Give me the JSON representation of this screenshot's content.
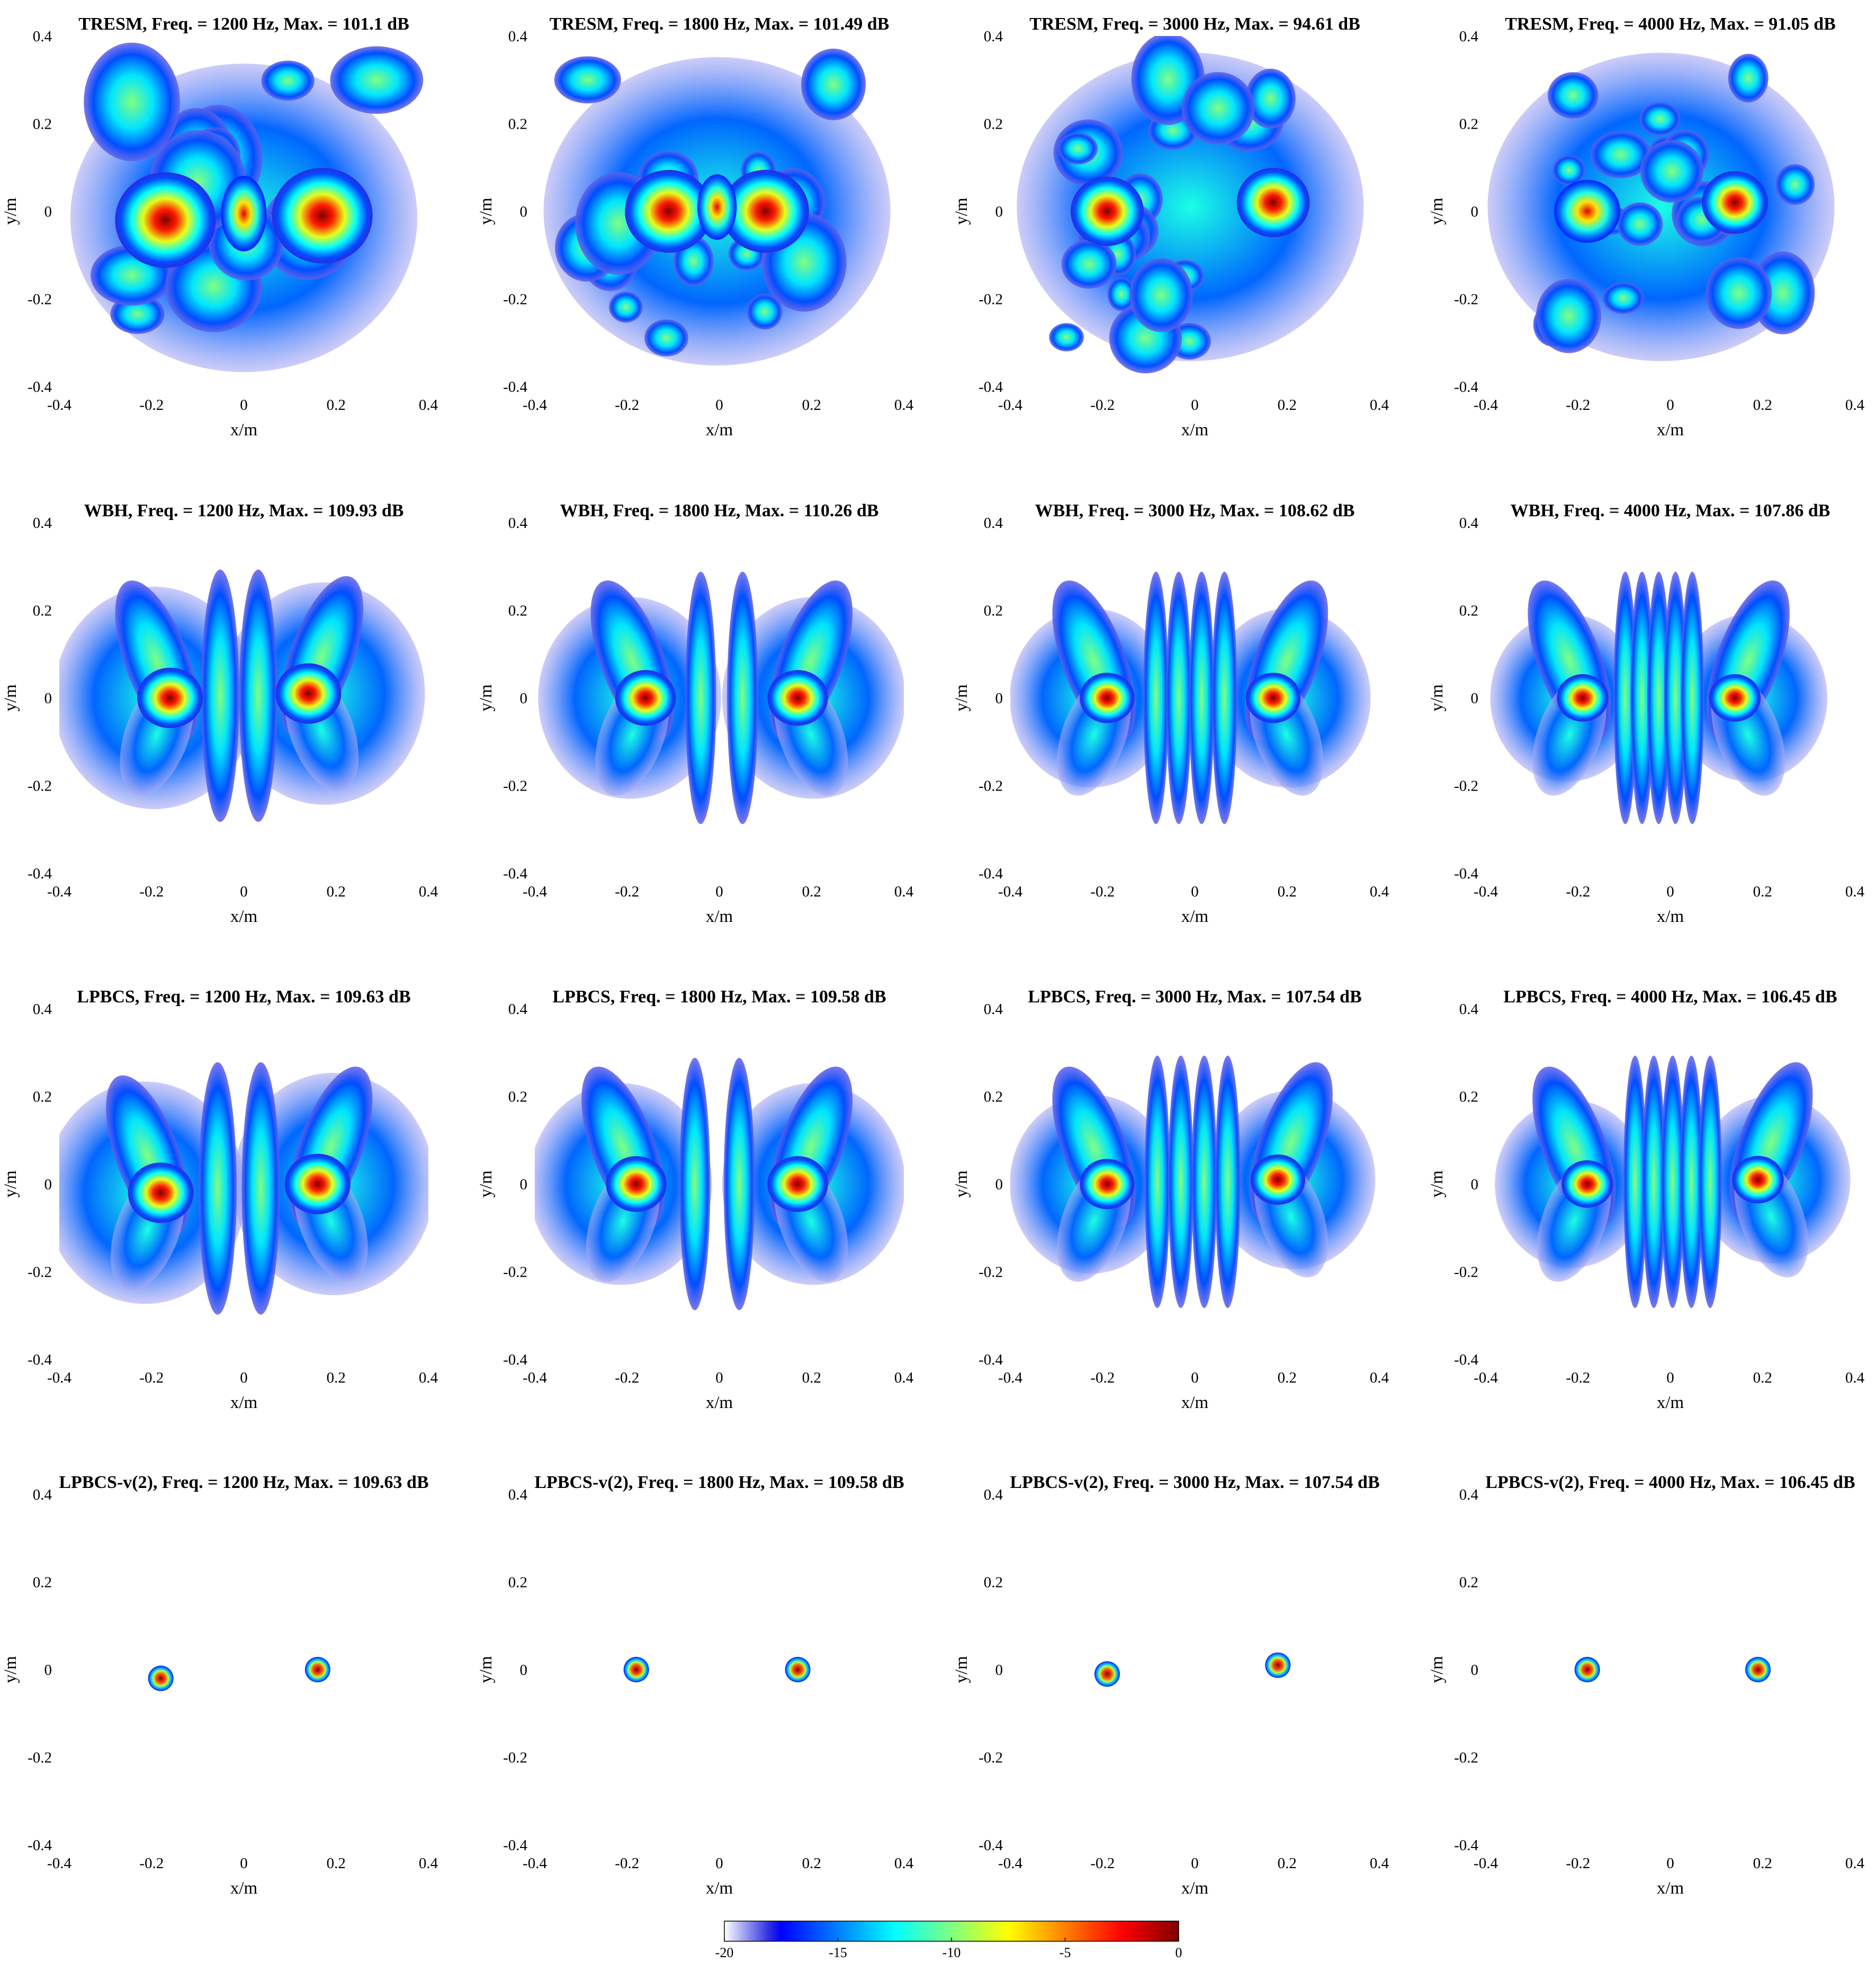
{
  "chart_data": {
    "type": "heatmap",
    "x_axis": {
      "label": "x/m",
      "range": [
        -0.4,
        0.4
      ],
      "ticks": [
        "-0.4",
        "-0.2",
        "0",
        "0.2",
        "0.4"
      ]
    },
    "y_axis": {
      "label": "y/m",
      "range": [
        -0.4,
        0.4
      ],
      "ticks": [
        "0.4",
        "0.2",
        "0",
        "-0.2",
        "-0.4"
      ]
    },
    "colorbar": {
      "colormap": "jet",
      "range": [
        -20,
        0
      ],
      "ticks": [
        "-20",
        "-15",
        "-10",
        "-5",
        "0"
      ],
      "placement": "bottom"
    },
    "panels": [
      {
        "title": "TRESM,  Freq. = 1200 Hz,  Max. = 101.1 dB",
        "method": "TRESM",
        "freq_hz": 1200,
        "max_db": 101.1,
        "pattern": "tresm",
        "peaks": [
          {
            "x": -0.17,
            "y": -0.02,
            "level": 0.0
          },
          {
            "x": 0.17,
            "y": -0.01,
            "level": 0.0
          }
        ]
      },
      {
        "title": "TRESM,  Freq. = 1800 Hz,  Max. = 101.49 dB",
        "method": "TRESM",
        "freq_hz": 1800,
        "max_db": 101.49,
        "pattern": "tresm",
        "peaks": [
          {
            "x": -0.11,
            "y": 0.0,
            "level": 0.0
          },
          {
            "x": 0.1,
            "y": 0.0,
            "level": 0.0
          }
        ]
      },
      {
        "title": "TRESM,  Freq. = 3000 Hz,  Max. = 94.61 dB",
        "method": "TRESM",
        "freq_hz": 3000,
        "max_db": 94.61,
        "pattern": "tresm",
        "peaks": [
          {
            "x": -0.19,
            "y": 0.0,
            "level": 0.0
          },
          {
            "x": 0.17,
            "y": 0.02,
            "level": 0.0
          }
        ]
      },
      {
        "title": "TRESM,  Freq. = 4000 Hz,  Max. = 91.05 dB",
        "method": "TRESM",
        "freq_hz": 4000,
        "max_db": 91.05,
        "pattern": "tresm",
        "peaks": [
          {
            "x": -0.18,
            "y": 0.0,
            "level": -2.0
          },
          {
            "x": 0.14,
            "y": 0.02,
            "level": 0.0
          }
        ]
      },
      {
        "title": "WBH,  Freq. = 1200 Hz,  Max. = 109.93 dB",
        "method": "WBH",
        "freq_hz": 1200,
        "max_db": 109.93,
        "pattern": "wbh",
        "peaks": [
          {
            "x": -0.16,
            "y": 0.0,
            "level": 0.0
          },
          {
            "x": 0.14,
            "y": 0.01,
            "level": 0.0
          }
        ]
      },
      {
        "title": "WBH,  Freq. = 1800 Hz,  Max. = 110.26 dB",
        "method": "WBH",
        "freq_hz": 1800,
        "max_db": 110.26,
        "pattern": "wbh",
        "peaks": [
          {
            "x": -0.16,
            "y": 0.0,
            "level": 0.0
          },
          {
            "x": 0.17,
            "y": 0.0,
            "level": 0.0
          }
        ]
      },
      {
        "title": "WBH,  Freq. = 3000 Hz,  Max. = 108.62 dB",
        "method": "WBH",
        "freq_hz": 3000,
        "max_db": 108.62,
        "pattern": "wbh",
        "peaks": [
          {
            "x": -0.19,
            "y": 0.0,
            "level": 0.0
          },
          {
            "x": 0.17,
            "y": 0.0,
            "level": 0.0
          }
        ]
      },
      {
        "title": "WBH,  Freq. = 4000 Hz,  Max. = 107.86 dB",
        "method": "WBH",
        "freq_hz": 4000,
        "max_db": 107.86,
        "pattern": "wbh",
        "peaks": [
          {
            "x": -0.19,
            "y": 0.0,
            "level": 0.0
          },
          {
            "x": 0.14,
            "y": 0.0,
            "level": 0.0
          }
        ]
      },
      {
        "title": "LPBCS,  Freq. = 1200 Hz,  Max. = 109.63 dB",
        "method": "LPBCS",
        "freq_hz": 1200,
        "max_db": 109.63,
        "pattern": "lpbcs",
        "peaks": [
          {
            "x": -0.18,
            "y": -0.02,
            "level": 0.0
          },
          {
            "x": 0.16,
            "y": 0.0,
            "level": 0.0
          }
        ]
      },
      {
        "title": "LPBCS,  Freq. = 1800 Hz,  Max. = 109.58 dB",
        "method": "LPBCS",
        "freq_hz": 1800,
        "max_db": 109.58,
        "pattern": "lpbcs",
        "peaks": [
          {
            "x": -0.18,
            "y": 0.0,
            "level": 0.0
          },
          {
            "x": 0.17,
            "y": 0.0,
            "level": 0.0
          }
        ]
      },
      {
        "title": "LPBCS,  Freq. = 3000 Hz,  Max. = 107.54 dB",
        "method": "LPBCS",
        "freq_hz": 3000,
        "max_db": 107.54,
        "pattern": "lpbcs",
        "peaks": [
          {
            "x": -0.19,
            "y": 0.0,
            "level": 0.0
          },
          {
            "x": 0.18,
            "y": 0.01,
            "level": 0.0
          }
        ]
      },
      {
        "title": "LPBCS,  Freq. = 4000 Hz,  Max. = 106.45 dB",
        "method": "LPBCS",
        "freq_hz": 4000,
        "max_db": 106.45,
        "pattern": "lpbcs",
        "peaks": [
          {
            "x": -0.18,
            "y": 0.0,
            "level": 0.0
          },
          {
            "x": 0.19,
            "y": 0.01,
            "level": 0.0
          }
        ]
      },
      {
        "title": "LPBCS-v(2),  Freq. = 1200 Hz,  Max. = 109.63 dB",
        "method": "LPBCS-v(2)",
        "freq_hz": 1200,
        "max_db": 109.63,
        "pattern": "sparse",
        "peaks": [
          {
            "x": -0.18,
            "y": -0.02,
            "level": 0.0
          },
          {
            "x": 0.16,
            "y": 0.0,
            "level": 0.0
          }
        ]
      },
      {
        "title": "LPBCS-v(2),  Freq. = 1800 Hz,  Max. = 109.58 dB",
        "method": "LPBCS-v(2)",
        "freq_hz": 1800,
        "max_db": 109.58,
        "pattern": "sparse",
        "peaks": [
          {
            "x": -0.18,
            "y": 0.0,
            "level": 0.0
          },
          {
            "x": 0.17,
            "y": 0.0,
            "level": 0.0
          }
        ]
      },
      {
        "title": "LPBCS-v(2),  Freq. = 3000 Hz,  Max. = 107.54 dB",
        "method": "LPBCS-v(2)",
        "freq_hz": 3000,
        "max_db": 107.54,
        "pattern": "sparse",
        "peaks": [
          {
            "x": -0.19,
            "y": -0.01,
            "level": 0.0
          },
          {
            "x": 0.18,
            "y": 0.01,
            "level": 0.0
          }
        ]
      },
      {
        "title": "LPBCS-v(2),  Freq. = 4000 Hz,  Max. = 106.45 dB",
        "method": "LPBCS-v(2)",
        "freq_hz": 4000,
        "max_db": 106.45,
        "pattern": "sparse",
        "peaks": [
          {
            "x": -0.18,
            "y": 0.0,
            "level": 0.0
          },
          {
            "x": 0.19,
            "y": 0.0,
            "level": 0.0
          }
        ]
      }
    ]
  }
}
